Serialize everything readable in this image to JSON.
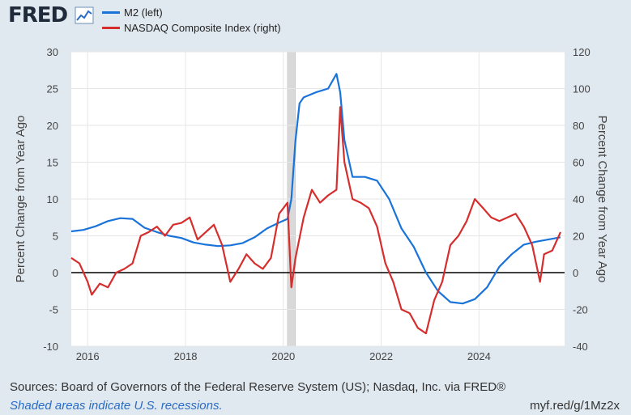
{
  "header": {
    "logo_text": "FRED",
    "logo_icon": "chart-line-icon"
  },
  "chart_data": {
    "type": "line",
    "xlim": [
      "2015-09-01",
      "2025-10-01"
    ],
    "x_ticks": [
      "2016",
      "2018",
      "2020",
      "2022",
      "2024"
    ],
    "y_left": {
      "label": "Percent Change from Year Ago",
      "ylim": [
        -10,
        30
      ],
      "ticks": [
        "-10",
        "-5",
        "0",
        "5",
        "10",
        "15",
        "20",
        "25",
        "30"
      ]
    },
    "y_right": {
      "label": "Percent Change from Year Ago",
      "ylim": [
        -40,
        120
      ],
      "ticks": [
        "-40",
        "-20",
        "0",
        "20",
        "40",
        "60",
        "80",
        "100",
        "120"
      ]
    },
    "grid": true,
    "zero_line": true,
    "recessions": [
      {
        "start": "2020-02-01",
        "end": "2020-04-01"
      }
    ],
    "series": [
      {
        "name": "M2 (left)",
        "axis": "left",
        "color": "#1a73d9",
        "points": [
          [
            "2015-09-01",
            5.6
          ],
          [
            "2015-12-01",
            5.8
          ],
          [
            "2016-03-01",
            6.3
          ],
          [
            "2016-06-01",
            7.0
          ],
          [
            "2016-09-01",
            7.4
          ],
          [
            "2016-12-01",
            7.3
          ],
          [
            "2017-03-01",
            6.1
          ],
          [
            "2017-06-01",
            5.5
          ],
          [
            "2017-09-01",
            5.0
          ],
          [
            "2017-12-01",
            4.7
          ],
          [
            "2018-03-01",
            4.1
          ],
          [
            "2018-06-01",
            3.8
          ],
          [
            "2018-09-01",
            3.6
          ],
          [
            "2018-12-01",
            3.7
          ],
          [
            "2019-03-01",
            4.0
          ],
          [
            "2019-06-01",
            4.8
          ],
          [
            "2019-09-01",
            6.0
          ],
          [
            "2019-12-01",
            6.8
          ],
          [
            "2020-02-01",
            7.3
          ],
          [
            "2020-03-01",
            10.0
          ],
          [
            "2020-04-01",
            18.0
          ],
          [
            "2020-05-01",
            23.0
          ],
          [
            "2020-06-01",
            23.8
          ],
          [
            "2020-09-01",
            24.5
          ],
          [
            "2020-12-01",
            25.0
          ],
          [
            "2021-02-01",
            27.0
          ],
          [
            "2021-03-01",
            24.5
          ],
          [
            "2021-04-01",
            18.0
          ],
          [
            "2021-06-01",
            13.0
          ],
          [
            "2021-09-01",
            13.0
          ],
          [
            "2021-12-01",
            12.5
          ],
          [
            "2022-03-01",
            10.0
          ],
          [
            "2022-06-01",
            6.0
          ],
          [
            "2022-09-01",
            3.5
          ],
          [
            "2022-12-01",
            0.0
          ],
          [
            "2023-03-01",
            -2.5
          ],
          [
            "2023-06-01",
            -4.0
          ],
          [
            "2023-09-01",
            -4.2
          ],
          [
            "2023-12-01",
            -3.6
          ],
          [
            "2024-03-01",
            -2.0
          ],
          [
            "2024-06-01",
            0.8
          ],
          [
            "2024-09-01",
            2.5
          ],
          [
            "2024-12-01",
            3.8
          ],
          [
            "2025-03-01",
            4.2
          ],
          [
            "2025-06-01",
            4.5
          ],
          [
            "2025-09-01",
            4.8
          ]
        ]
      },
      {
        "name": "NASDAQ Composite Index (right)",
        "axis": "right",
        "color": "#d62d2d",
        "points": [
          [
            "2015-09-01",
            8
          ],
          [
            "2015-11-01",
            5
          ],
          [
            "2016-01-01",
            -5
          ],
          [
            "2016-02-01",
            -12
          ],
          [
            "2016-04-01",
            -6
          ],
          [
            "2016-06-01",
            -8
          ],
          [
            "2016-08-01",
            0
          ],
          [
            "2016-10-01",
            2
          ],
          [
            "2016-12-01",
            5
          ],
          [
            "2017-02-01",
            20
          ],
          [
            "2017-04-01",
            22
          ],
          [
            "2017-06-01",
            25
          ],
          [
            "2017-08-01",
            20
          ],
          [
            "2017-10-01",
            26
          ],
          [
            "2017-12-01",
            27
          ],
          [
            "2018-02-01",
            30
          ],
          [
            "2018-04-01",
            18
          ],
          [
            "2018-06-01",
            22
          ],
          [
            "2018-08-01",
            26
          ],
          [
            "2018-10-01",
            15
          ],
          [
            "2018-12-01",
            -5
          ],
          [
            "2019-02-01",
            2
          ],
          [
            "2019-04-01",
            10
          ],
          [
            "2019-06-01",
            5
          ],
          [
            "2019-08-01",
            2
          ],
          [
            "2019-10-01",
            8
          ],
          [
            "2019-12-01",
            32
          ],
          [
            "2020-02-01",
            38
          ],
          [
            "2020-03-01",
            -8
          ],
          [
            "2020-04-01",
            8
          ],
          [
            "2020-06-01",
            30
          ],
          [
            "2020-08-01",
            45
          ],
          [
            "2020-10-01",
            38
          ],
          [
            "2020-12-01",
            42
          ],
          [
            "2021-02-01",
            45
          ],
          [
            "2021-03-01",
            90
          ],
          [
            "2021-04-01",
            60
          ],
          [
            "2021-06-01",
            40
          ],
          [
            "2021-08-01",
            38
          ],
          [
            "2021-10-01",
            35
          ],
          [
            "2021-12-01",
            25
          ],
          [
            "2022-02-01",
            5
          ],
          [
            "2022-04-01",
            -5
          ],
          [
            "2022-06-01",
            -20
          ],
          [
            "2022-08-01",
            -22
          ],
          [
            "2022-10-01",
            -30
          ],
          [
            "2022-12-01",
            -33
          ],
          [
            "2023-02-01",
            -15
          ],
          [
            "2023-04-01",
            -5
          ],
          [
            "2023-06-01",
            15
          ],
          [
            "2023-08-01",
            20
          ],
          [
            "2023-10-01",
            28
          ],
          [
            "2023-12-01",
            40
          ],
          [
            "2024-02-01",
            35
          ],
          [
            "2024-04-01",
            30
          ],
          [
            "2024-06-01",
            28
          ],
          [
            "2024-08-01",
            30
          ],
          [
            "2024-10-01",
            32
          ],
          [
            "2024-12-01",
            25
          ],
          [
            "2025-02-01",
            15
          ],
          [
            "2025-04-01",
            -5
          ],
          [
            "2025-05-01",
            10
          ],
          [
            "2025-07-01",
            12
          ],
          [
            "2025-09-01",
            22
          ]
        ]
      }
    ]
  },
  "footer": {
    "source": "Sources: Board of Governors of the Federal Reserve System (US); Nasdaq, Inc. via FRED®",
    "recession_note": "Shaded areas indicate U.S. recessions.",
    "url": "myf.red/g/1Mz2x"
  }
}
